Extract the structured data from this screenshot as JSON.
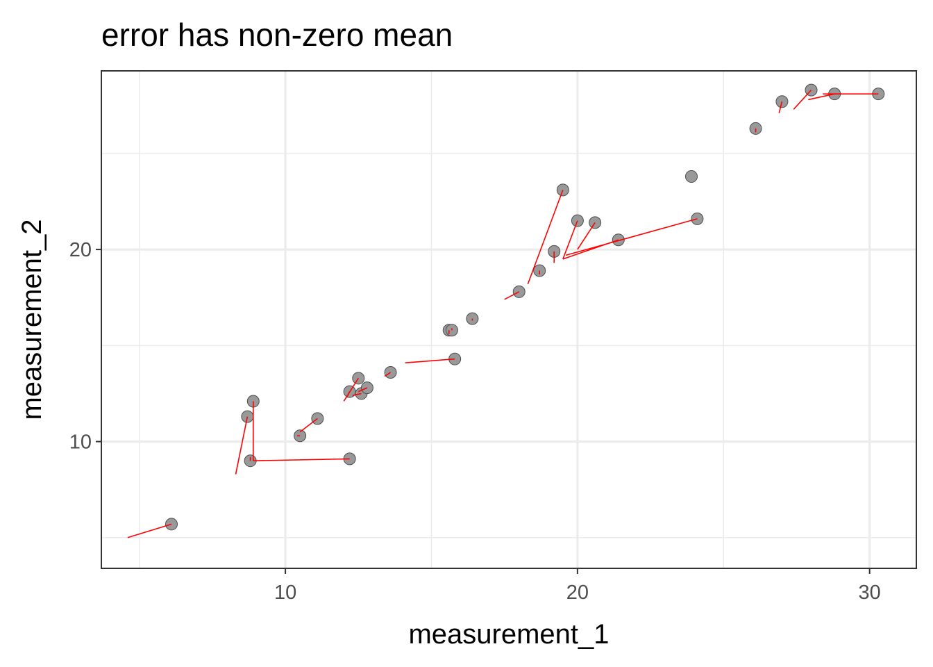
{
  "chart_data": {
    "type": "scatter",
    "title": "error has non-zero mean",
    "xlabel": "measurement_1",
    "ylabel": "measurement_2",
    "xlim": [
      3.7,
      31.6
    ],
    "ylim": [
      3.4,
      29.3
    ],
    "x_ticks": [
      10,
      20,
      30
    ],
    "x_minor_ticks": [
      5,
      15,
      25
    ],
    "y_ticks": [
      10,
      20
    ],
    "y_minor_ticks": [
      5,
      15,
      25
    ],
    "grid": true,
    "legend": "none",
    "colors": {
      "point_fill": "#999999",
      "point_stroke": "#4d4d4d",
      "segment": "#ff0000",
      "grid": "#ebebeb",
      "panel_border": "#333333"
    },
    "points": [
      {
        "x": 6.1,
        "y": 5.7,
        "xend": 4.6,
        "yend": 5.0
      },
      {
        "x": 8.7,
        "y": 11.3,
        "xend": 8.3,
        "yend": 8.3
      },
      {
        "x": 8.9,
        "y": 12.1,
        "xend": 8.9,
        "yend": 9.0
      },
      {
        "x": 8.8,
        "y": 9.0,
        "xend": 8.8,
        "yend": 9.2
      },
      {
        "x": 12.2,
        "y": 9.1,
        "xend": 8.9,
        "yend": 9.0
      },
      {
        "x": 10.5,
        "y": 10.3,
        "xend": 10.4,
        "yend": 10.3
      },
      {
        "x": 11.1,
        "y": 11.2,
        "xend": 10.5,
        "yend": 10.5
      },
      {
        "x": 12.2,
        "y": 12.6,
        "xend": 12.1,
        "yend": 12.3
      },
      {
        "x": 12.5,
        "y": 13.3,
        "xend": 12.0,
        "yend": 12.1
      },
      {
        "x": 12.6,
        "y": 12.5,
        "xend": 12.3,
        "yend": 12.4
      },
      {
        "x": 12.8,
        "y": 12.8,
        "xend": 12.5,
        "yend": 12.6
      },
      {
        "x": 13.6,
        "y": 13.6,
        "xend": 13.4,
        "yend": 13.4
      },
      {
        "x": 15.8,
        "y": 14.3,
        "xend": 14.1,
        "yend": 14.1
      },
      {
        "x": 15.6,
        "y": 15.8,
        "xend": 15.6,
        "yend": 15.6
      },
      {
        "x": 15.7,
        "y": 15.8,
        "xend": 15.7,
        "yend": 15.9
      },
      {
        "x": 16.4,
        "y": 16.4,
        "xend": 16.4,
        "yend": 16.3
      },
      {
        "x": 18.0,
        "y": 17.8,
        "xend": 17.5,
        "yend": 17.4
      },
      {
        "x": 18.7,
        "y": 18.9,
        "xend": 18.7,
        "yend": 18.7
      },
      {
        "x": 19.5,
        "y": 23.1,
        "xend": 18.3,
        "yend": 18.2
      },
      {
        "x": 19.2,
        "y": 19.9,
        "xend": 19.2,
        "yend": 19.3
      },
      {
        "x": 20.0,
        "y": 21.5,
        "xend": 19.5,
        "yend": 19.5
      },
      {
        "x": 20.6,
        "y": 21.4,
        "xend": 20.0,
        "yend": 20.0
      },
      {
        "x": 21.4,
        "y": 20.5,
        "xend": 19.5,
        "yend": 19.5
      },
      {
        "x": 24.1,
        "y": 21.6,
        "xend": 19.6,
        "yend": 19.7
      },
      {
        "x": 23.9,
        "y": 23.8,
        "xend": 23.9,
        "yend": 23.8
      },
      {
        "x": 26.1,
        "y": 26.3,
        "xend": 26.1,
        "yend": 26.1
      },
      {
        "x": 27.0,
        "y": 27.7,
        "xend": 26.9,
        "yend": 27.1
      },
      {
        "x": 28.0,
        "y": 28.3,
        "xend": 27.4,
        "yend": 27.3
      },
      {
        "x": 28.8,
        "y": 28.1,
        "xend": 27.9,
        "yend": 27.8
      },
      {
        "x": 30.3,
        "y": 28.1,
        "xend": 28.4,
        "yend": 28.1
      }
    ]
  }
}
